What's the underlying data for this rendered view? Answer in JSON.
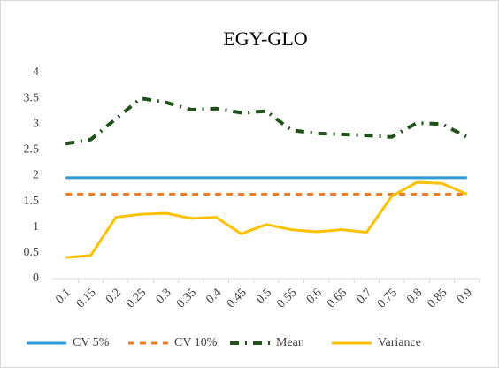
{
  "chart_data": {
    "type": "line",
    "title": "EGY-GLO",
    "categories": [
      "0.1",
      "0.15",
      "0.2",
      "0.25",
      "0.3",
      "0.35",
      "0.4",
      "0.45",
      "0.5",
      "0.55",
      "0.6",
      "0.65",
      "0.7",
      "0.75",
      "0.8",
      "0.85",
      "0.9"
    ],
    "series": [
      {
        "name": "CV 5%",
        "color": "#2e9bd6",
        "style": "solid",
        "values": [
          1.96,
          1.96,
          1.96,
          1.96,
          1.96,
          1.96,
          1.96,
          1.96,
          1.96,
          1.96,
          1.96,
          1.96,
          1.96,
          1.96,
          1.96,
          1.96,
          1.96
        ]
      },
      {
        "name": "CV 10%",
        "color": "#f07c2a",
        "style": "dashed",
        "values": [
          1.64,
          1.64,
          1.64,
          1.64,
          1.64,
          1.64,
          1.64,
          1.64,
          1.64,
          1.64,
          1.64,
          1.64,
          1.64,
          1.64,
          1.64,
          1.64,
          1.64
        ]
      },
      {
        "name": "Mean",
        "color": "#1e5218",
        "style": "dash-dot",
        "values": [
          2.62,
          2.7,
          3.1,
          3.5,
          3.42,
          3.28,
          3.3,
          3.22,
          3.25,
          2.88,
          2.82,
          2.8,
          2.78,
          2.75,
          3.02,
          3.0,
          2.75
        ]
      },
      {
        "name": "Variance",
        "color": "#ffc000",
        "style": "solid",
        "values": [
          0.41,
          0.45,
          1.19,
          1.25,
          1.27,
          1.17,
          1.19,
          0.87,
          1.05,
          0.95,
          0.91,
          0.95,
          0.9,
          1.6,
          1.87,
          1.85,
          1.64
        ]
      }
    ],
    "ylim": [
      0,
      4
    ],
    "yticks": [
      0,
      0.5,
      1,
      1.5,
      2,
      2.5,
      3,
      3.5,
      4
    ],
    "grid": false,
    "legend": "bottom"
  }
}
